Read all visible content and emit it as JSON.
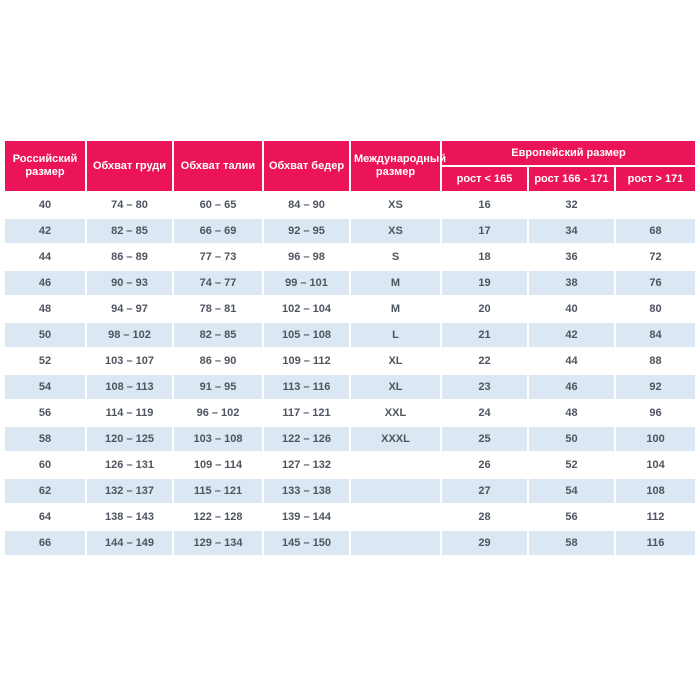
{
  "colors": {
    "header_bg": "#EC1459",
    "stripe_bg": "#DBE7F3",
    "body_text": "#4E5560"
  },
  "chart_data": {
    "type": "table",
    "title": "",
    "header": {
      "russian_size": "Российский размер",
      "chest": "Обхват груди",
      "waist": "Обхват талии",
      "hips": "Обхват бедер",
      "international": "Международный размер",
      "european_group": "Европейский размер",
      "sub_height_lt": "рост < 165",
      "sub_height_mid": "рост 166 - 171",
      "sub_height_gt": "рост > 171"
    },
    "rows": [
      [
        "40",
        "74 – 80",
        "60 – 65",
        "84 – 90",
        "XS",
        "16",
        "32",
        ""
      ],
      [
        "42",
        "82 – 85",
        "66 – 69",
        "92 – 95",
        "XS",
        "17",
        "34",
        "68"
      ],
      [
        "44",
        "86 – 89",
        "77 – 73",
        "96 – 98",
        "S",
        "18",
        "36",
        "72"
      ],
      [
        "46",
        "90 – 93",
        "74 – 77",
        "99 – 101",
        "M",
        "19",
        "38",
        "76"
      ],
      [
        "48",
        "94 – 97",
        "78 – 81",
        "102 – 104",
        "M",
        "20",
        "40",
        "80"
      ],
      [
        "50",
        "98 – 102",
        "82 – 85",
        "105 – 108",
        "L",
        "21",
        "42",
        "84"
      ],
      [
        "52",
        "103 – 107",
        "86 – 90",
        "109 – 112",
        "XL",
        "22",
        "44",
        "88"
      ],
      [
        "54",
        "108 – 113",
        "91 – 95",
        "113 – 116",
        "XL",
        "23",
        "46",
        "92"
      ],
      [
        "56",
        "114 – 119",
        "96 – 102",
        "117 – 121",
        "XXL",
        "24",
        "48",
        "96"
      ],
      [
        "58",
        "120 – 125",
        "103 – 108",
        "122 – 126",
        "XXXL",
        "25",
        "50",
        "100"
      ],
      [
        "60",
        "126 – 131",
        "109 – 114",
        "127 – 132",
        "",
        "26",
        "52",
        "104"
      ],
      [
        "62",
        "132 – 137",
        "115 – 121",
        "133 – 138",
        "",
        "27",
        "54",
        "108"
      ],
      [
        "64",
        "138 – 143",
        "122 – 128",
        "139 – 144",
        "",
        "28",
        "56",
        "112"
      ],
      [
        "66",
        "144 – 149",
        "129 – 134",
        "145 – 150",
        "",
        "29",
        "58",
        "116"
      ]
    ]
  }
}
